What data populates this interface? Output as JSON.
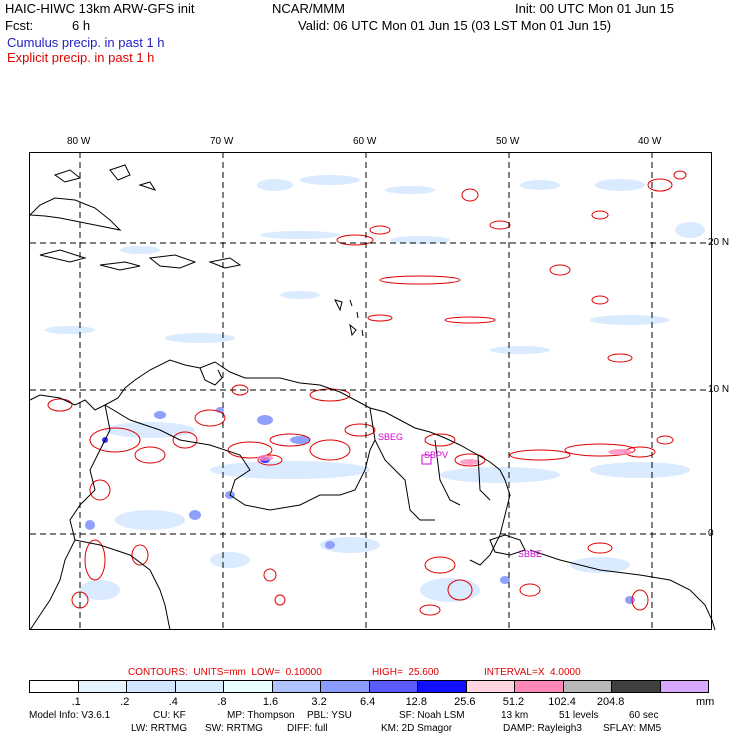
{
  "header": {
    "title_left": "HAIC-HIWC 13km ARW-GFS init",
    "org": "NCAR/MMM",
    "init": "Init: 00 UTC Mon 01 Jun 15",
    "fcst_label": "Fcst:",
    "fcst_value": "6 h",
    "valid": "Valid: 06 UTC Mon 01 Jun 15 (03 LST Mon 01 Jun 15)",
    "cumulus": "Cumulus precip. in past 1 h",
    "explicit": "Explicit precip. in past 1 h"
  },
  "map": {
    "lon_labels": [
      "80 W",
      "70 W",
      "60 W",
      "50 W",
      "40 W"
    ],
    "lat_labels": [
      "20 N",
      "10 N",
      "0"
    ],
    "stations": [
      "SBEG",
      "SBPV",
      "SBBE"
    ],
    "colors": {
      "coast": "#000000",
      "grid": "#000000",
      "explicit": "#e00000",
      "cumulus_light": "#cfe4ff",
      "cumulus_mid": "#8fa8ff",
      "station": "#d400d4"
    }
  },
  "contours": {
    "text": "CONTOURS:  UNITS=mm  LOW=  0.10000",
    "high": "HIGH=  25.600",
    "interval": "INTERVAL=X  4.0000"
  },
  "colorbar": {
    "labels": [
      ".1",
      ".2",
      ".4",
      ".8",
      "1.6",
      "3.2",
      "6.4",
      "12.8",
      "25.6",
      "51.2",
      "102.4",
      "204.8"
    ],
    "unit": "mm",
    "colors": [
      "#ffffff",
      "#e6f4ff",
      "#d2e6ff",
      "#d8ecff",
      "#eaffff",
      "#b0c4ff",
      "#8a9cff",
      "#5a5aff",
      "#1010ff",
      "#ffd6e0",
      "#ff88bb",
      "#b8b8b8",
      "#404040",
      "#d8a8ff"
    ]
  },
  "model_info": {
    "line1": [
      "Model Info: V3.6.1",
      "CU: KF",
      "MP: Thompson",
      "PBL: YSU",
      "SF: Noah LSM",
      "13 km",
      "51 levels",
      "60 sec"
    ],
    "line2": [
      "LW: RRTMG",
      "SW: RRTMG",
      "DIFF: full",
      "KM: 2D Smagor",
      "DAMP: Rayleigh3",
      "SFLAY: MM5"
    ]
  }
}
